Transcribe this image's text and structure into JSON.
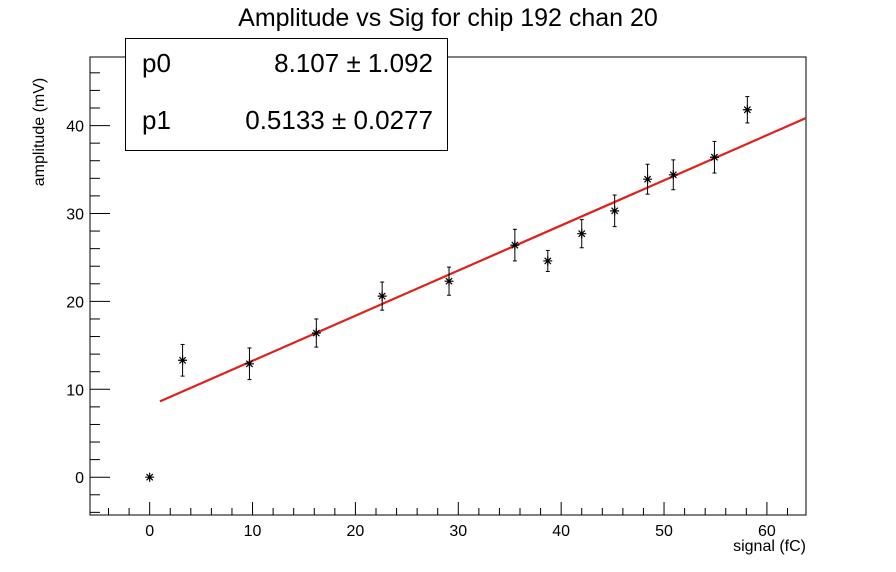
{
  "chart_data": {
    "type": "scatter",
    "title": "Amplitude vs Sig for chip 192 chan 20",
    "xlabel": "signal (fC)",
    "ylabel": "amplitude (mV)",
    "xlim": [
      -5.8,
      63.8
    ],
    "ylim": [
      -4.3,
      47.8
    ],
    "x_ticks": [
      0,
      10,
      20,
      30,
      40,
      50,
      60
    ],
    "y_ticks": [
      0,
      10,
      20,
      30,
      40
    ],
    "grid": false,
    "legend": "none",
    "series": [
      {
        "marker": "asterisk",
        "color": "#000000",
        "points": [
          {
            "x": 0.0,
            "y": 0.0,
            "err": 0.0
          },
          {
            "x": 3.2,
            "y": 13.3,
            "err": 1.8
          },
          {
            "x": 9.7,
            "y": 12.9,
            "err": 1.8
          },
          {
            "x": 16.2,
            "y": 16.4,
            "err": 1.6
          },
          {
            "x": 22.6,
            "y": 20.6,
            "err": 1.6
          },
          {
            "x": 29.1,
            "y": 22.3,
            "err": 1.6
          },
          {
            "x": 35.5,
            "y": 26.4,
            "err": 1.8
          },
          {
            "x": 38.7,
            "y": 24.6,
            "err": 1.2
          },
          {
            "x": 42.0,
            "y": 27.7,
            "err": 1.6
          },
          {
            "x": 45.2,
            "y": 30.3,
            "err": 1.8
          },
          {
            "x": 48.4,
            "y": 33.9,
            "err": 1.7
          },
          {
            "x": 50.9,
            "y": 34.4,
            "err": 1.7
          },
          {
            "x": 54.9,
            "y": 36.4,
            "err": 1.8
          },
          {
            "x": 58.1,
            "y": 41.8,
            "err": 1.5
          }
        ]
      }
    ],
    "fit": {
      "color": "#e0201c",
      "x_range": [
        1.0,
        63.8
      ],
      "p0": 8.107,
      "p1": 0.5133
    },
    "stats": {
      "p0_label": "p0",
      "p0_value": "8.107 ± 1.092",
      "p1_label": "p1",
      "p1_value": "0.5133 ± 0.0277"
    }
  }
}
